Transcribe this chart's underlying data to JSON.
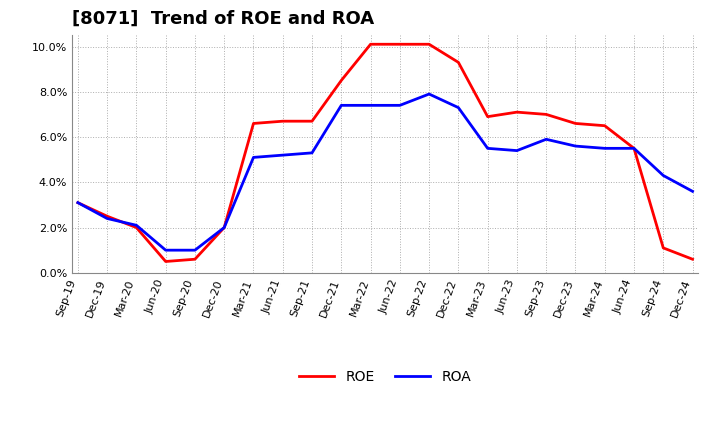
{
  "title": "[8071]  Trend of ROE and ROA",
  "roe_values": [
    3.1,
    2.5,
    2.0,
    0.5,
    0.6,
    2.0,
    6.6,
    6.7,
    6.7,
    8.5,
    10.1,
    10.1,
    10.1,
    9.3,
    6.9,
    7.1,
    7.0,
    6.6,
    6.5,
    5.5,
    1.1,
    0.6
  ],
  "roa_values": [
    3.1,
    2.4,
    2.1,
    1.0,
    1.0,
    2.0,
    5.1,
    5.2,
    5.3,
    7.4,
    7.4,
    7.4,
    7.9,
    7.3,
    5.5,
    5.4,
    5.9,
    5.6,
    5.5,
    5.5,
    4.3,
    3.6
  ],
  "x_labels": [
    "Sep-19",
    "Dec-19",
    "Mar-20",
    "Jun-20",
    "Sep-20",
    "Dec-20",
    "Mar-21",
    "Jun-21",
    "Sep-21",
    "Dec-21",
    "Mar-22",
    "Jun-22",
    "Sep-22",
    "Dec-22",
    "Mar-23",
    "Jun-23",
    "Sep-23",
    "Dec-23",
    "Mar-24",
    "Jun-24",
    "Sep-24",
    "Dec-24"
  ],
  "roe_color": "#ff0000",
  "roa_color": "#0000ff",
  "background_color": "#ffffff",
  "plot_bg_color": "#ffffff",
  "grid_color": "#999999",
  "ylim": [
    0.0,
    10.5
  ],
  "yticks": [
    0.0,
    2.0,
    4.0,
    6.0,
    8.0,
    10.0
  ],
  "title_fontsize": 13,
  "legend_fontsize": 10,
  "tick_fontsize": 8,
  "line_width": 2.0
}
